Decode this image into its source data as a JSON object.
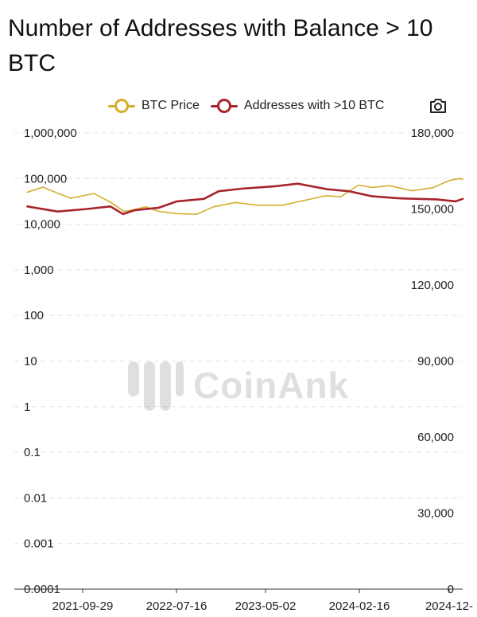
{
  "header": {
    "title": "Number of Addresses with Balance > 10 BTC"
  },
  "legend": {
    "items": [
      {
        "label": "BTC Price",
        "color": "#d4ae2c"
      },
      {
        "label": "Addresses with >10 BTC",
        "color": "#a8252d"
      }
    ]
  },
  "toolbar": {
    "camera_icon": "camera-icon"
  },
  "watermark": {
    "text": "CoinAnk"
  },
  "chart_data": {
    "type": "line",
    "title": "Number of Addresses with Balance > 10 BTC",
    "x": [
      "2021-09-29",
      "2022-07-16",
      "2023-05-02",
      "2024-02-16",
      "2024-12-"
    ],
    "left_axis": {
      "scale": "log",
      "ticks": [
        "1,000,000",
        "100,000",
        "10,000",
        "1,000",
        "100",
        "10",
        "1",
        "0.1",
        "0.01",
        "0.001",
        "0.0001"
      ],
      "range": [
        0.0001,
        1000000
      ]
    },
    "right_axis": {
      "scale": "linear",
      "ticks": [
        "180,000",
        "150,000",
        "120,000",
        "90,000",
        "60,000",
        "30,000",
        "0"
      ],
      "range": [
        0,
        180000
      ]
    },
    "grid": true,
    "legend_position": "top-right",
    "series": [
      {
        "name": "BTC Price",
        "axis": "left",
        "color": "#d4ae2c",
        "points": [
          [
            "2021-09-29",
            50000
          ],
          [
            "2021-11-10",
            65000
          ],
          [
            "2021-12-20",
            48000
          ],
          [
            "2022-01-25",
            37000
          ],
          [
            "2022-03-28",
            47000
          ],
          [
            "2022-05-10",
            31000
          ],
          [
            "2022-06-18",
            19000
          ],
          [
            "2022-07-16",
            21000
          ],
          [
            "2022-08-15",
            24000
          ],
          [
            "2022-09-20",
            19000
          ],
          [
            "2022-11-10",
            17000
          ],
          [
            "2022-12-31",
            16500
          ],
          [
            "2023-02-15",
            24000
          ],
          [
            "2023-04-15",
            30000
          ],
          [
            "2023-06-15",
            26000
          ],
          [
            "2023-08-20",
            26000
          ],
          [
            "2023-10-25",
            34000
          ],
          [
            "2023-12-15",
            42000
          ],
          [
            "2024-01-25",
            40000
          ],
          [
            "2024-03-13",
            72000
          ],
          [
            "2024-04-20",
            64000
          ],
          [
            "2024-06-05",
            70000
          ],
          [
            "2024-08-05",
            54000
          ],
          [
            "2024-09-30",
            63000
          ],
          [
            "2024-11-13",
            90000
          ],
          [
            "2024-12-10",
            100000
          ],
          [
            "2024-12-20",
            97000
          ]
        ]
      },
      {
        "name": "Addresses with >10 BTC",
        "axis": "right",
        "color": "#a8252d",
        "points": [
          [
            "2021-09-29",
            151000
          ],
          [
            "2021-12-20",
            149000
          ],
          [
            "2022-03-10",
            150000
          ],
          [
            "2022-05-12",
            151000
          ],
          [
            "2022-06-15",
            148000
          ],
          [
            "2022-07-16",
            149500
          ],
          [
            "2022-09-20",
            150500
          ],
          [
            "2022-11-08",
            153000
          ],
          [
            "2023-01-20",
            154000
          ],
          [
            "2023-03-01",
            157000
          ],
          [
            "2023-05-02",
            158000
          ],
          [
            "2023-08-01",
            159000
          ],
          [
            "2023-10-01",
            160000
          ],
          [
            "2023-12-20",
            157800
          ],
          [
            "2024-02-16",
            157000
          ],
          [
            "2024-04-20",
            155000
          ],
          [
            "2024-07-01",
            154200
          ],
          [
            "2024-10-10",
            153800
          ],
          [
            "2024-12-01",
            153000
          ],
          [
            "2024-12-20",
            154000
          ]
        ]
      }
    ]
  }
}
